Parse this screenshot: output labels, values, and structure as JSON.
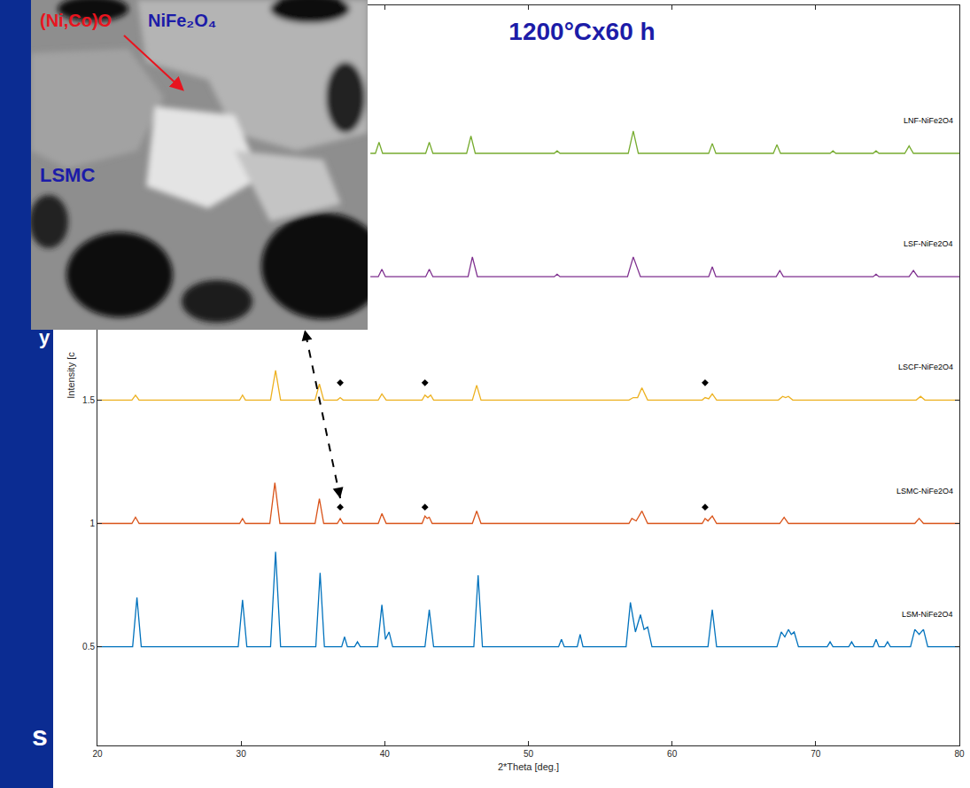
{
  "chart_data": {
    "type": "line",
    "title": "1200°Cx60 h",
    "x_label": "2*Theta [deg.]",
    "y_label": "Intensity [c",
    "xlim": [
      20,
      80
    ],
    "xticks": [
      20,
      30,
      40,
      50,
      60,
      70,
      80
    ],
    "ylim": [
      0.1,
      3.1
    ],
    "yticks": [
      0.5,
      1,
      1.5
    ],
    "grid": false,
    "series": [
      {
        "name": "LSM-NiFe2O4",
        "color": "#0072BD",
        "type": "line",
        "x": [
          20,
          22.45,
          22.75,
          23.05,
          29.8,
          30.1,
          30.4,
          32.05,
          32.4,
          32.75,
          35.2,
          35.5,
          35.8,
          37.0,
          37.2,
          37.4,
          37.9,
          38.1,
          38.3,
          39.5,
          39.8,
          40.05,
          40.3,
          40.55,
          42.8,
          43.1,
          43.4,
          46.2,
          46.5,
          46.8,
          52.1,
          52.3,
          52.5,
          53.4,
          53.6,
          53.8,
          56.8,
          57.1,
          57.45,
          57.8,
          58.05,
          58.3,
          58.6,
          62.5,
          62.8,
          63.1,
          67.3,
          67.6,
          67.85,
          68.1,
          68.3,
          68.5,
          68.8,
          70.8,
          71.0,
          71.2,
          72.3,
          72.5,
          72.7,
          74.0,
          74.2,
          74.4,
          74.8,
          75.0,
          75.2,
          76.6,
          76.9,
          77.2,
          77.5,
          77.8,
          80
        ],
        "values": [
          0.5,
          0.5,
          0.7,
          0.5,
          0.5,
          0.69,
          0.5,
          0.5,
          0.885,
          0.5,
          0.5,
          0.8,
          0.5,
          0.5,
          0.54,
          0.5,
          0.5,
          0.52,
          0.5,
          0.5,
          0.67,
          0.53,
          0.56,
          0.5,
          0.5,
          0.65,
          0.5,
          0.5,
          0.79,
          0.5,
          0.5,
          0.53,
          0.5,
          0.5,
          0.55,
          0.5,
          0.5,
          0.68,
          0.56,
          0.63,
          0.57,
          0.58,
          0.5,
          0.5,
          0.65,
          0.5,
          0.5,
          0.56,
          0.54,
          0.57,
          0.55,
          0.56,
          0.5,
          0.5,
          0.52,
          0.5,
          0.5,
          0.52,
          0.5,
          0.5,
          0.53,
          0.5,
          0.5,
          0.52,
          0.5,
          0.5,
          0.57,
          0.55,
          0.57,
          0.5,
          0.5
        ]
      },
      {
        "name": "LSMC-NiFe2O4",
        "color": "#D95319",
        "type": "line",
        "x": [
          20,
          22.4,
          22.65,
          22.9,
          29.9,
          30.1,
          30.3,
          32.0,
          32.35,
          32.7,
          35.15,
          35.45,
          35.75,
          36.7,
          36.9,
          37.1,
          39.55,
          39.8,
          40.1,
          42.6,
          42.8,
          42.95,
          43.1,
          43.3,
          46.1,
          46.4,
          46.7,
          57.0,
          57.2,
          57.5,
          57.9,
          58.3,
          62.1,
          62.3,
          62.5,
          62.8,
          63.1,
          67.5,
          67.8,
          68.1,
          76.9,
          77.2,
          77.5,
          80
        ],
        "values": [
          1,
          1,
          1.025,
          1,
          1,
          1.02,
          1,
          1,
          1.165,
          1,
          1,
          1.1,
          1,
          1,
          1.02,
          1,
          1,
          1.04,
          1,
          1,
          1.03,
          1.02,
          1.025,
          1,
          1,
          1.05,
          1,
          1,
          1.02,
          1.01,
          1.05,
          1,
          1,
          1.02,
          1.01,
          1.03,
          1,
          1,
          1.025,
          1,
          1,
          1.02,
          1,
          1
        ]
      },
      {
        "name": "LSCF-NiFe2O4",
        "color": "#EDB120",
        "type": "line",
        "x": [
          20,
          22.4,
          22.65,
          22.9,
          29.9,
          30.1,
          30.3,
          32.05,
          32.4,
          32.75,
          35.15,
          35.45,
          35.75,
          36.7,
          36.9,
          37.1,
          39.55,
          39.8,
          40.1,
          42.6,
          42.8,
          43.0,
          43.2,
          43.4,
          46.1,
          46.4,
          46.7,
          57.0,
          57.3,
          57.6,
          57.9,
          58.3,
          62.1,
          62.3,
          62.55,
          62.8,
          63.1,
          67.4,
          67.7,
          67.9,
          68.1,
          68.4,
          77.0,
          77.3,
          77.6,
          80
        ],
        "values": [
          1.5,
          1.5,
          1.52,
          1.5,
          1.5,
          1.52,
          1.5,
          1.5,
          1.62,
          1.5,
          1.5,
          1.565,
          1.5,
          1.5,
          1.51,
          1.5,
          1.5,
          1.525,
          1.5,
          1.5,
          1.52,
          1.51,
          1.52,
          1.5,
          1.5,
          1.56,
          1.5,
          1.5,
          1.51,
          1.51,
          1.55,
          1.5,
          1.5,
          1.51,
          1.505,
          1.525,
          1.5,
          1.5,
          1.515,
          1.51,
          1.515,
          1.5,
          1.5,
          1.515,
          1.5,
          1.5
        ]
      },
      {
        "name": "LSF-NiFe2O4",
        "color": "#7E2F8E",
        "type": "line",
        "x": [
          39,
          39.55,
          39.8,
          40.05,
          42.85,
          43.1,
          43.35,
          45.8,
          46.1,
          46.45,
          51.8,
          52.0,
          52.2,
          56.9,
          57.3,
          57.8,
          62.55,
          62.8,
          63.05,
          67.25,
          67.5,
          67.75,
          74.0,
          74.2,
          74.4,
          76.5,
          76.8,
          77.1,
          80
        ],
        "values": [
          2,
          2,
          2.03,
          2,
          2,
          2.03,
          2,
          2,
          2.08,
          2,
          2,
          2.01,
          2,
          2,
          2.08,
          2,
          2,
          2.04,
          2,
          2,
          2.025,
          2,
          2,
          2.01,
          2,
          2,
          2.025,
          2,
          2
        ]
      },
      {
        "name": "LNF-NiFe2O4",
        "color": "#77AC30",
        "type": "line",
        "x": [
          39,
          39.35,
          39.6,
          39.85,
          42.85,
          43.1,
          43.35,
          45.7,
          46.0,
          46.3,
          51.8,
          52.0,
          52.2,
          56.95,
          57.3,
          57.65,
          62.55,
          62.8,
          63.05,
          67.05,
          67.3,
          67.55,
          71.0,
          71.2,
          71.4,
          74.0,
          74.2,
          74.4,
          76.2,
          76.5,
          76.8,
          80
        ],
        "values": [
          2.5,
          2.5,
          2.545,
          2.5,
          2.5,
          2.545,
          2.5,
          2.5,
          2.57,
          2.5,
          2.5,
          2.51,
          2.5,
          2.5,
          2.59,
          2.5,
          2.5,
          2.54,
          2.5,
          2.5,
          2.535,
          2.5,
          2.5,
          2.51,
          2.5,
          2.5,
          2.51,
          2.5,
          2.5,
          2.53,
          2.5,
          2.5
        ]
      },
      {
        "type": "scatter",
        "marker": "diamond",
        "color": "#000000",
        "x": [
          36.9,
          42.8,
          62.3,
          36.9,
          42.8,
          62.3
        ],
        "values": [
          1.066,
          1.066,
          1.066,
          1.57,
          1.57,
          1.57
        ]
      }
    ]
  },
  "inset": {
    "labels": [
      {
        "text": "(Ni,Co)O",
        "color": "#e8141e"
      },
      {
        "text": "NiFe₂O₄",
        "color": "#1c1ca8"
      },
      {
        "text": "LSMC",
        "color": "#1c1ca8"
      }
    ]
  },
  "slide": {
    "texts": [
      "y",
      "s"
    ]
  }
}
